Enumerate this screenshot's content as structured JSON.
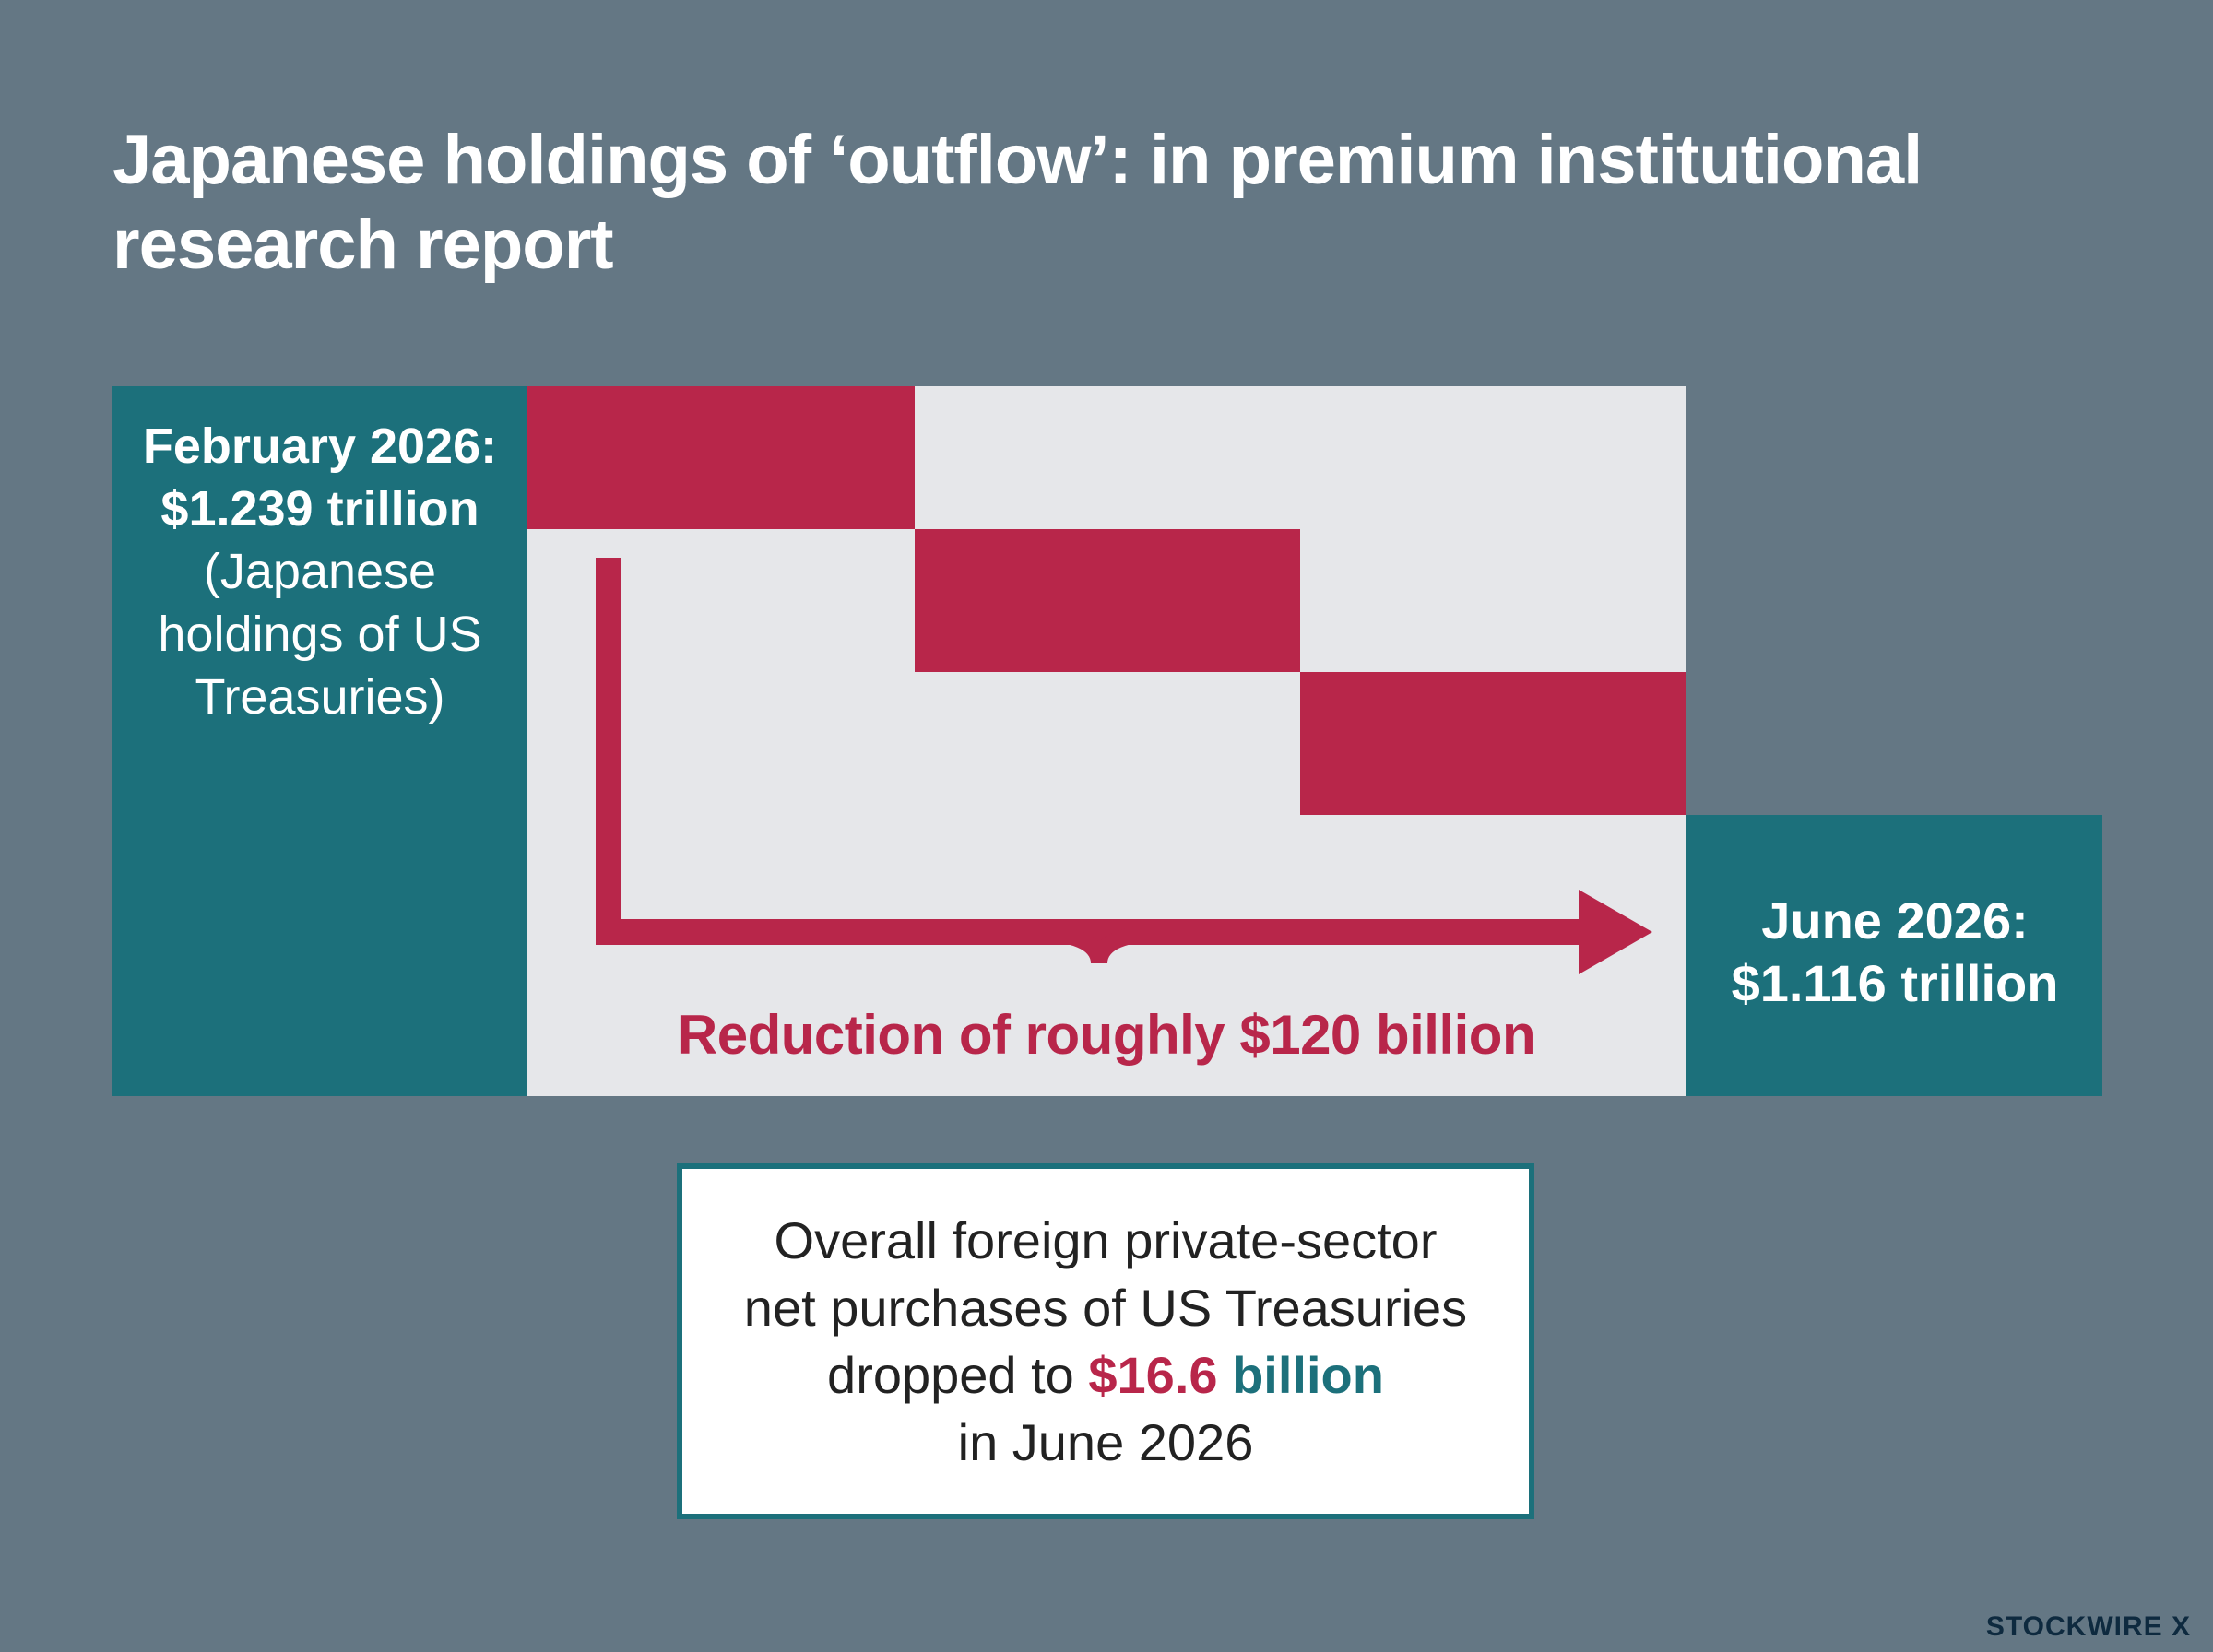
{
  "title": "Japanese holdings of ‘outflow’: in premium institutional research report",
  "start": {
    "date_label": "February 2026:",
    "value_label": "$1.239 trillion",
    "description_lines": [
      "(Japanese",
      "holdings of US",
      "Treasuries)"
    ],
    "value_trillion": 1.239
  },
  "end": {
    "date_label": "June 2026:",
    "value_label": "$1.116 trillion",
    "value_trillion": 1.116
  },
  "reduction_label": "Reduction of roughly $120 billion",
  "note": {
    "line1": "Overall foreign private-sector",
    "line2": "net purchases of US Treasuries",
    "line3_prefix": "dropped to ",
    "line3_amount": "$16.6",
    "line3_unit": "billion",
    "line4": "in June 2026"
  },
  "brand": "STOCKWIRE X",
  "colors": {
    "background": "#647784",
    "teal": "#1c707b",
    "red": "#b8264a",
    "light": "#e6e7ea"
  }
}
